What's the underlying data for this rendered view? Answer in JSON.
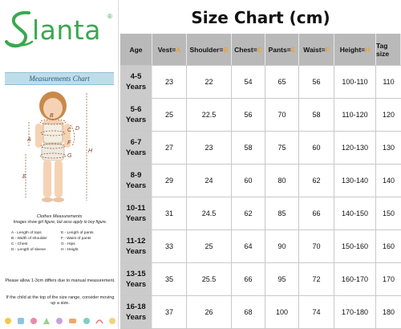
{
  "brand": {
    "name": "lanta",
    "registered": "®",
    "color": "#39a84f"
  },
  "measurements_banner": "Measurements Chart",
  "figure_letters": [
    "A",
    "B",
    "C",
    "D",
    "E",
    "F",
    "G",
    "H"
  ],
  "clothes": {
    "title": "Clothes Measurements",
    "desc": "Images show girl figure, but asso apply to boy figure.",
    "legend": [
      "A - Length of tops",
      "E - Length of pants",
      "B - Width of shoulder",
      "F - Waist of pants",
      "C - Chest",
      "G - Hips",
      "D - Length of sleeve",
      "H - Height"
    ]
  },
  "notes": {
    "n1": "Please allow 1-3cm differs due to manual measurement.",
    "n2": "If the child at the top of the size range, consider moving up a size."
  },
  "chart_data": {
    "type": "table",
    "title": "Size Chart (cm)",
    "columns": [
      {
        "name": "Age",
        "letter": ""
      },
      {
        "name": "Vest=",
        "letter": "A"
      },
      {
        "name": "Shoulder=",
        "letter": "B"
      },
      {
        "name": "Chest=",
        "letter": "C"
      },
      {
        "name": "Pants=",
        "letter": "E"
      },
      {
        "name": "Waist=",
        "letter": "F"
      },
      {
        "name": "Height=",
        "letter": "H"
      },
      {
        "name": "Tag size",
        "letter": ""
      }
    ],
    "rows": [
      {
        "age": "4-5 Years",
        "values": [
          "23",
          "22",
          "54",
          "65",
          "56",
          "100-110",
          "110"
        ]
      },
      {
        "age": "5-6 Years",
        "values": [
          "25",
          "22.5",
          "56",
          "70",
          "58",
          "110-120",
          "120"
        ]
      },
      {
        "age": "6-7 Years",
        "values": [
          "27",
          "23",
          "58",
          "75",
          "60",
          "120-130",
          "130"
        ]
      },
      {
        "age": "8-9 Years",
        "values": [
          "29",
          "24",
          "60",
          "80",
          "62",
          "130-140",
          "140"
        ]
      },
      {
        "age": "10-11 Years",
        "values": [
          "31",
          "24.5",
          "62",
          "85",
          "66",
          "140-150",
          "150"
        ]
      },
      {
        "age": "11-12 Years",
        "values": [
          "33",
          "25",
          "64",
          "90",
          "70",
          "150-160",
          "160"
        ]
      },
      {
        "age": "13-15 Years",
        "values": [
          "35",
          "25.5",
          "66",
          "95",
          "72",
          "160-170",
          "170"
        ]
      },
      {
        "age": "16-18 Years",
        "values": [
          "37",
          "26",
          "68",
          "100",
          "74",
          "170-180",
          "180"
        ]
      }
    ],
    "header_color": "#b9b9b9",
    "age_color": "#cbcbcb",
    "letter_color": "#f0a12b"
  }
}
